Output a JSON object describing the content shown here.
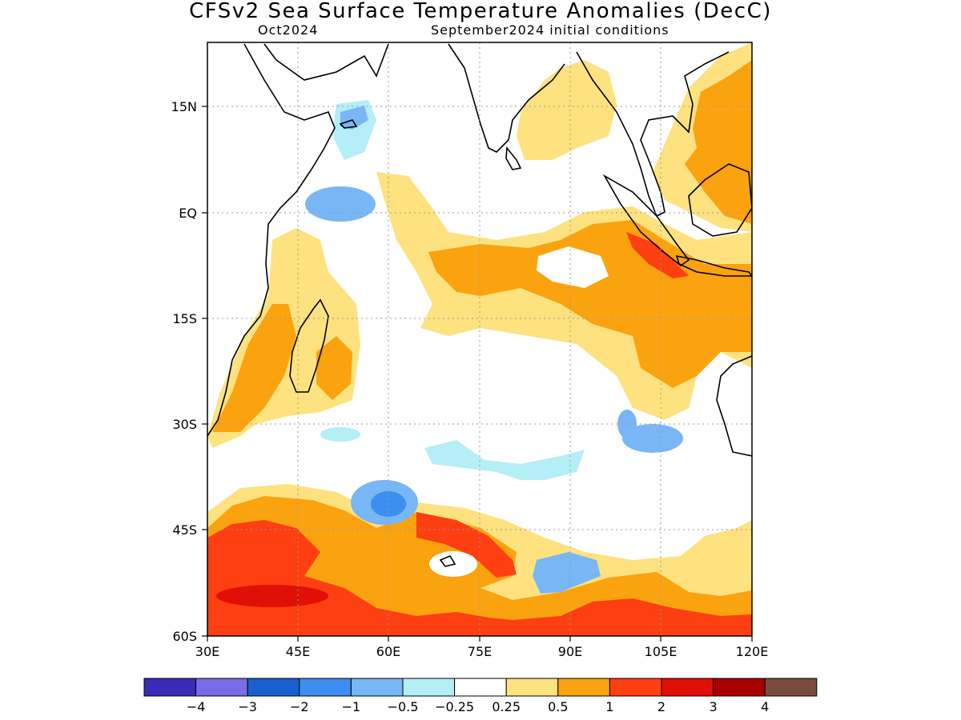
{
  "title": "CFSv2 Sea Surface Temperature Anomalies (DecC)",
  "subtitle_left": "Oct2024",
  "subtitle_right": "September2024 initial conditions",
  "map": {
    "lon_range": [
      30,
      120
    ],
    "lat_range": [
      -60,
      24
    ],
    "lon_ticks": [
      "30E",
      "45E",
      "60E",
      "75E",
      "90E",
      "105E",
      "120E"
    ],
    "lat_ticks": [
      "15N",
      "EQ",
      "15S",
      "30S",
      "45S",
      "60S"
    ],
    "grid": true
  },
  "colorbar": {
    "colors": [
      "#3a2bb8",
      "#7b6be8",
      "#1a5fd0",
      "#3c8ef0",
      "#78b6f5",
      "#b4eef7",
      "#ffffff",
      "#fde27f",
      "#fba20f",
      "#fd3f12",
      "#e01008",
      "#a80000",
      "#7a4b3c"
    ],
    "labels": [
      "−4",
      "−3",
      "−2",
      "−1",
      "−0.5",
      "−0.25",
      "0.25",
      "0.5",
      "1",
      "2",
      "3",
      "4"
    ]
  }
}
